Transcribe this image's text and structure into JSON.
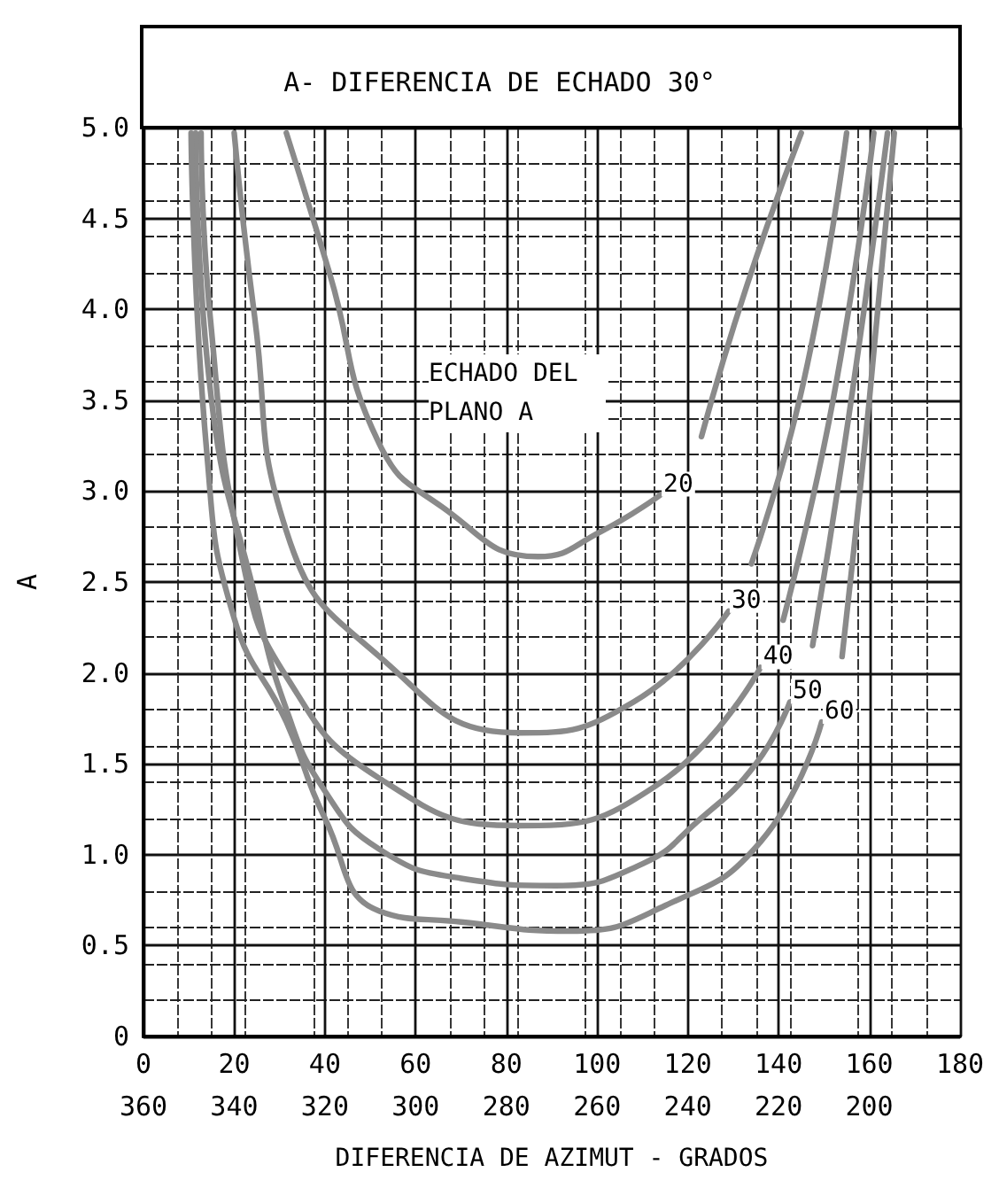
{
  "chart_data": {
    "type": "line",
    "title": "A- DIFERENCIA DE ECHADO 30°",
    "xlabel": "DIFERENCIA DE AZIMUT - GRADOS",
    "ylabel": "A",
    "legend_title": "ECHADO DEL PLANO A",
    "xlim": [
      0,
      180
    ],
    "xticks": [
      0,
      20,
      40,
      60,
      80,
      100,
      120,
      140,
      160,
      180
    ],
    "x2lim": [
      360,
      180
    ],
    "x2ticks": [
      360,
      340,
      320,
      300,
      280,
      260,
      240,
      220,
      200
    ],
    "ylim": [
      0,
      5
    ],
    "yticks": [
      0,
      0.5,
      {
        "value": 1,
        "label": "1.0"
      },
      1.5,
      {
        "value": 2,
        "label": "2.0"
      },
      2.5,
      {
        "value": 3,
        "label": "3.0"
      },
      3.5,
      {
        "value": 4,
        "label": "4.0"
      },
      4.5,
      {
        "value": 5,
        "label": "5.0"
      }
    ],
    "grid": true,
    "legend": false,
    "series": [
      {
        "name": "20",
        "color": "#8a8a8a",
        "x": [
          31.5,
          41,
          52,
          66,
          87,
          101,
          114,
          118,
          123,
          133,
          145
        ],
        "values": [
          4.97,
          4.2,
          3.26,
          2.91,
          2.64,
          2.78,
          2.98,
          null,
          3.3,
          4.13,
          4.97
        ]
      },
      {
        "name": "30",
        "color": "#8a8a8a",
        "x": [
          20,
          24.5,
          31.5,
          52,
          83,
          108,
          129,
          131,
          134,
          145.5,
          155
        ],
        "values": [
          4.97,
          3.96,
          2.78,
          2.09,
          1.67,
          1.84,
          2.34,
          null,
          2.6,
          3.6,
          4.97
        ]
      },
      {
        "name": "40",
        "color": "#8a8a8a",
        "x": [
          12.7,
          14.7,
          22,
          31.5,
          52,
          83,
          113,
          136,
          138,
          141,
          152,
          161
        ],
        "values": [
          4.97,
          3.96,
          2.6,
          1.98,
          1.42,
          1.16,
          1.38,
          2.03,
          null,
          2.29,
          3.5,
          4.97
        ]
      },
      {
        "name": "50",
        "color": "#8a8a8a",
        "x": [
          11.5,
          15,
          24.5,
          31.5,
          40,
          52,
          70,
          91,
          110,
          122,
          135,
          142.5,
          145,
          147.5,
          156,
          164
        ],
        "values": [
          4.97,
          3.5,
          2.43,
          1.8,
          1.35,
          1.03,
          0.87,
          0.83,
          0.95,
          1.18,
          1.5,
          1.84,
          null,
          2.15,
          3.5,
          4.97
        ]
      },
      {
        "name": "60",
        "color": "#8a8a8a",
        "x": [
          10.5,
          14,
          20,
          31.5,
          40,
          52,
          70,
          94,
          115,
          136,
          149.5,
          152,
          154,
          160,
          165.5
        ],
        "values": [
          4.97,
          3.2,
          2.3,
          1.73,
          1.2,
          0.69,
          0.63,
          0.58,
          0.72,
          1.07,
          1.73,
          null,
          2.09,
          3.5,
          4.97
        ]
      }
    ]
  }
}
